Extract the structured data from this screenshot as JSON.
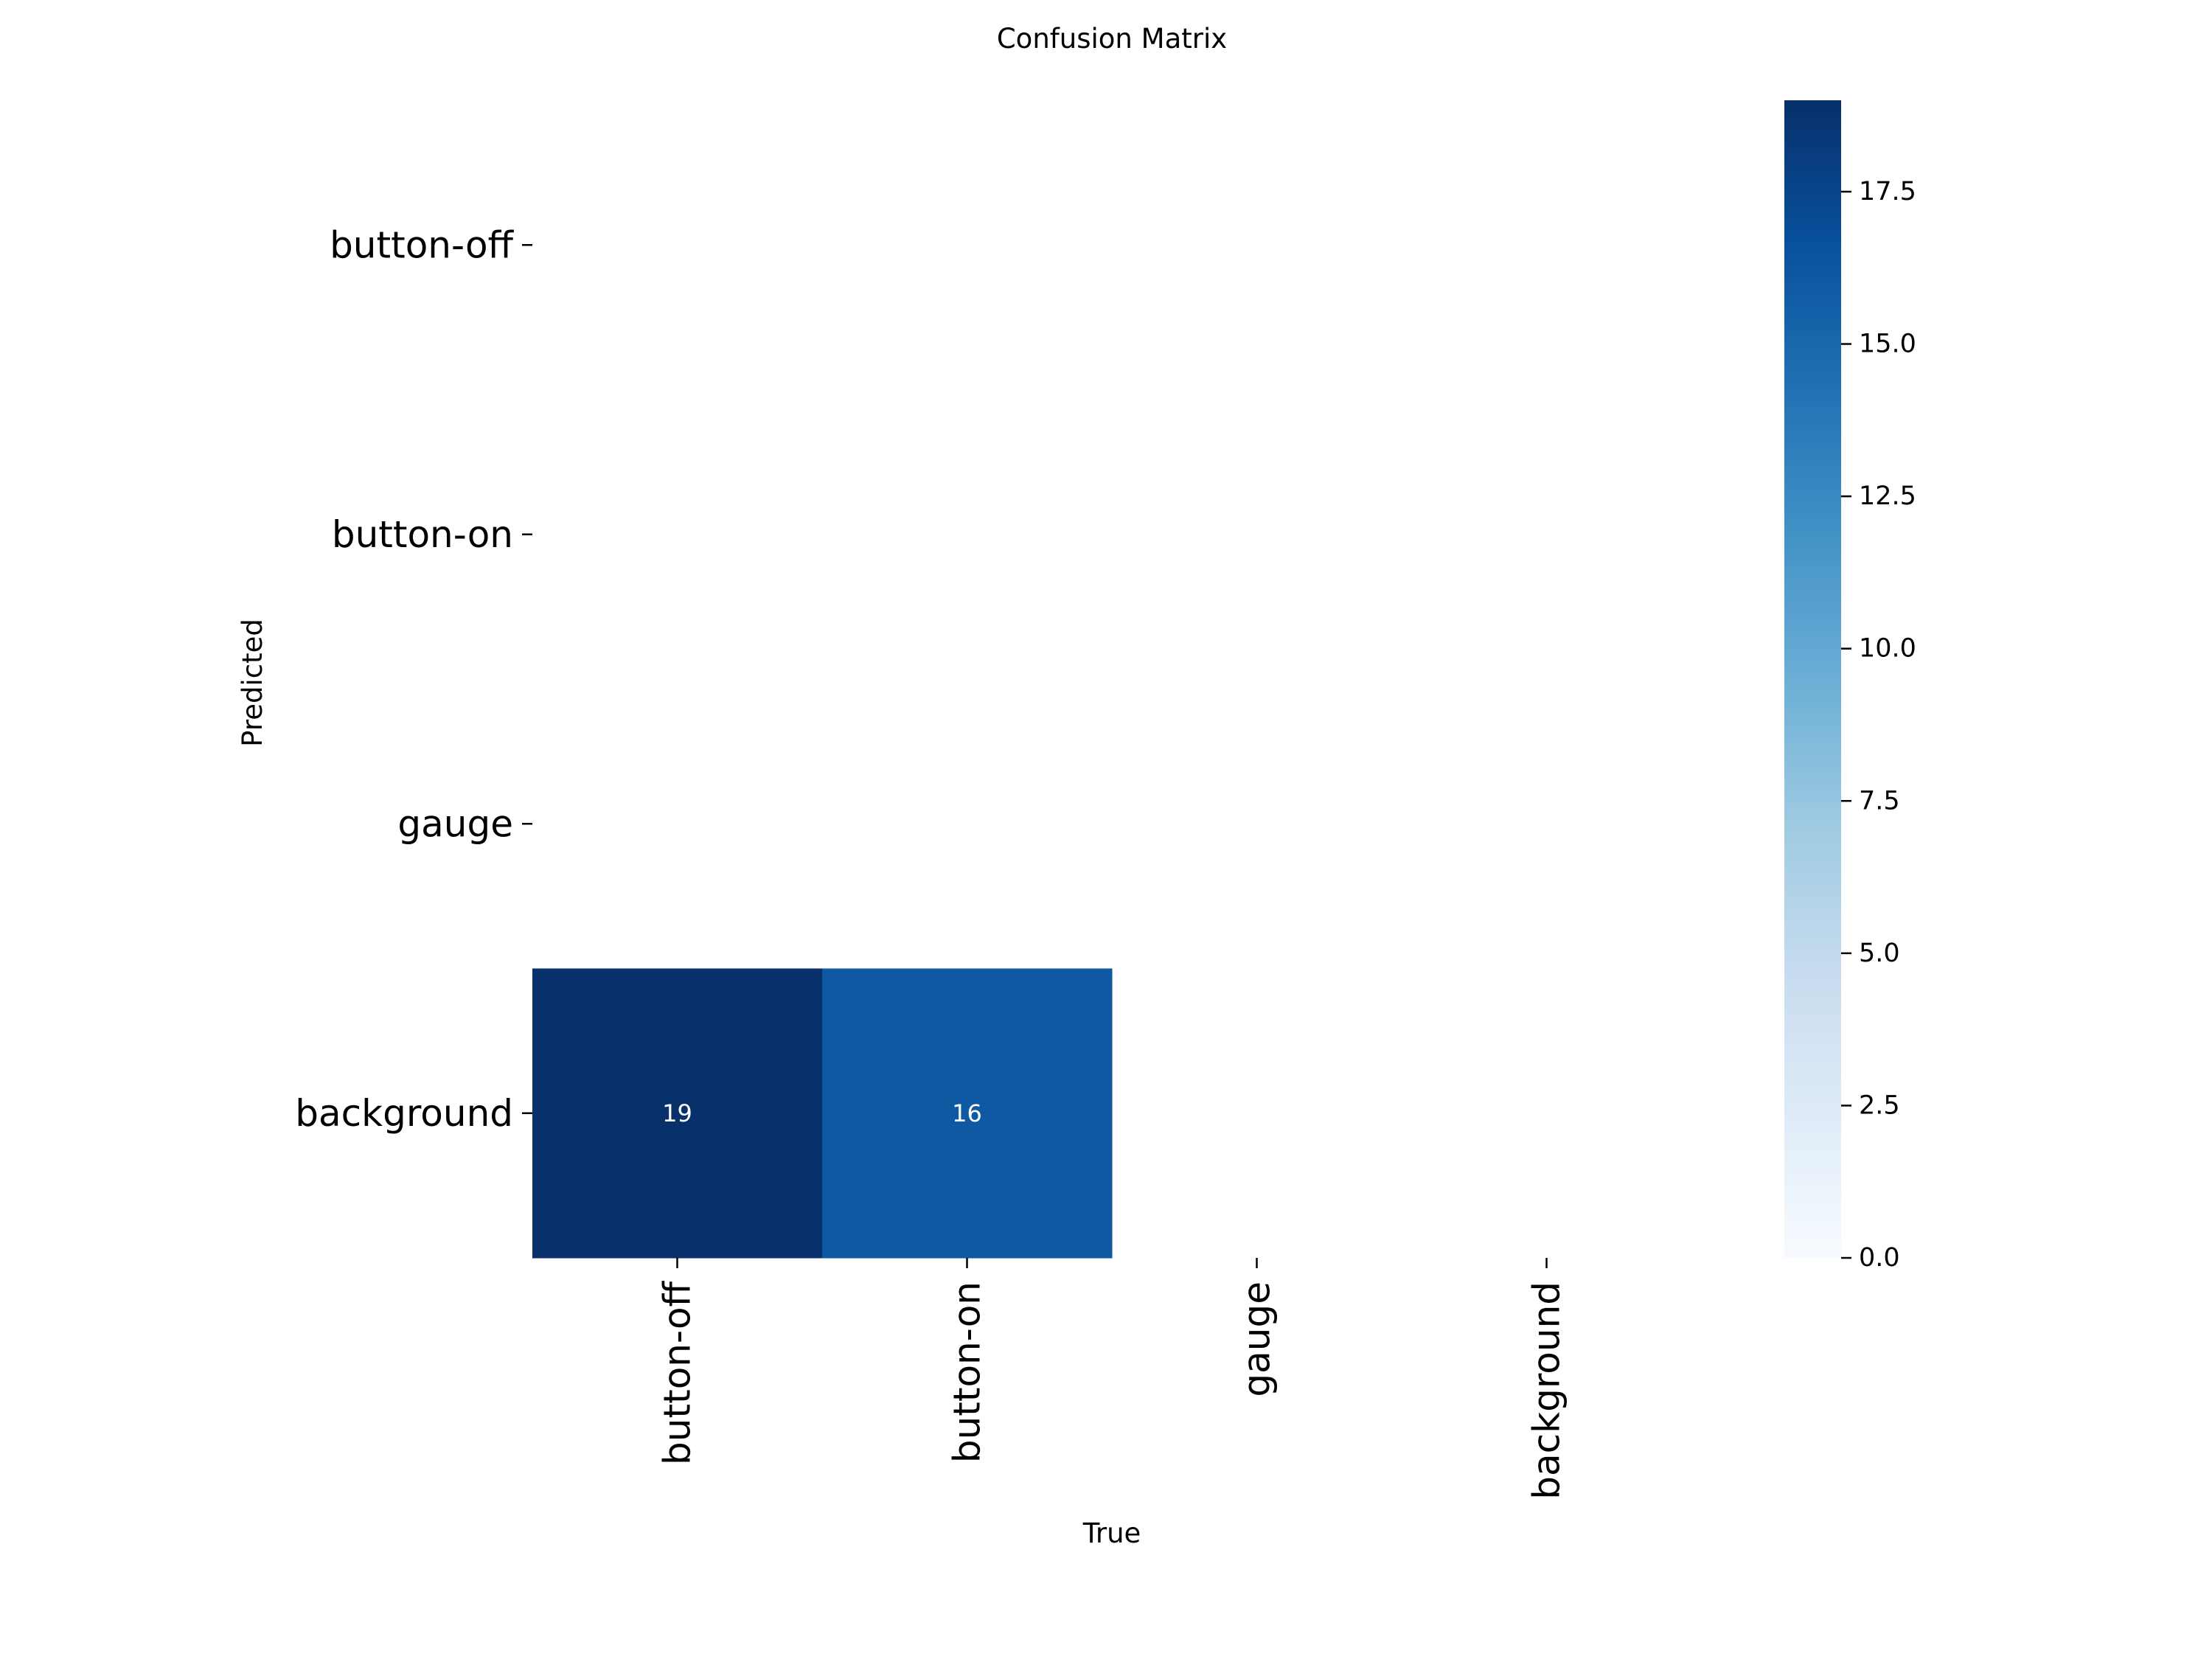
{
  "chart_data": {
    "type": "heatmap",
    "title": "Confusion Matrix",
    "xlabel": "True",
    "ylabel": "Predicted",
    "x_categories": [
      "button-off",
      "button-on",
      "gauge",
      "background"
    ],
    "y_categories": [
      "button-off",
      "button-on",
      "gauge",
      "background"
    ],
    "cells": [
      {
        "predicted": "background",
        "true": "button-off",
        "value": 19,
        "label": "19"
      },
      {
        "predicted": "background",
        "true": "button-on",
        "value": 16,
        "label": "16"
      }
    ],
    "colorbar": {
      "range": [
        0,
        19
      ],
      "ticks": [
        {
          "value": 0.0,
          "label": "0.0"
        },
        {
          "value": 2.5,
          "label": "2.5"
        },
        {
          "value": 5.0,
          "label": "5.0"
        },
        {
          "value": 7.5,
          "label": "7.5"
        },
        {
          "value": 10.0,
          "label": "10.0"
        },
        {
          "value": 12.5,
          "label": "12.5"
        },
        {
          "value": 15.0,
          "label": "15.0"
        },
        {
          "value": 17.5,
          "label": "17.5"
        }
      ]
    },
    "colormap": "Blues",
    "colorscale": [
      "#f7fbff",
      "#deebf7",
      "#c6dbef",
      "#9ecae1",
      "#6baed6",
      "#4292c6",
      "#2171b5",
      "#08519c",
      "#08306b"
    ]
  }
}
